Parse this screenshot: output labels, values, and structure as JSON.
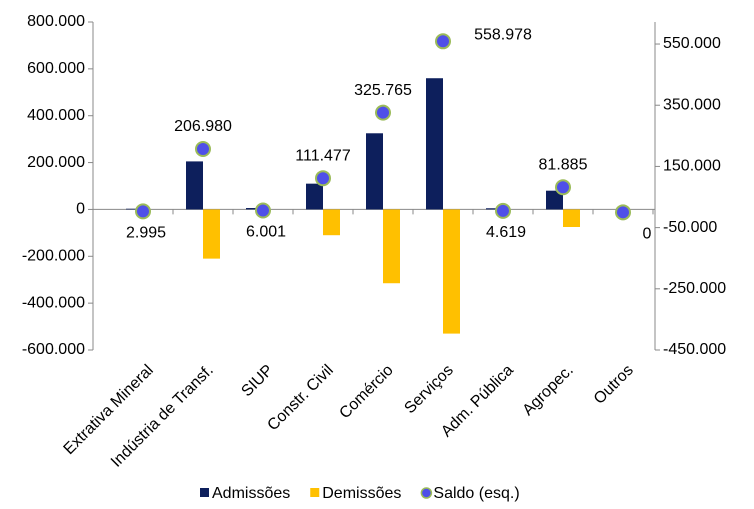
{
  "chart_data": {
    "type": "bar",
    "categories": [
      "Extrativa Mineral",
      "Indústria de Transf.",
      "SIUP",
      "Constr. Civil",
      "Comércio",
      "Serviços",
      "Adm. Pública",
      "Agropec.",
      "Outros"
    ],
    "series": [
      {
        "name": "Admissões",
        "color": "#0d1f5c",
        "type": "bar",
        "values": [
          3000,
          205000,
          6000,
          110000,
          325000,
          560000,
          5000,
          80000,
          0
        ]
      },
      {
        "name": "Demissões",
        "color": "#ffc000",
        "type": "bar",
        "values": [
          0,
          -210000,
          0,
          -110000,
          -315000,
          -530000,
          0,
          -75000,
          0
        ]
      },
      {
        "name": "Saldo (esq.)",
        "color": "#4f4fe8",
        "type": "scatter",
        "axis": "y2",
        "values": [
          2995,
          206980,
          6001,
          111477,
          325765,
          558978,
          4619,
          81885,
          0
        ],
        "value_labels": [
          "2.995",
          "206.980",
          "6.001",
          "111.477",
          "325.765",
          "558.978",
          "4.619",
          "81.885",
          "0"
        ]
      }
    ],
    "ylim": [
      -600000,
      800000
    ],
    "yticks": [
      {
        "value": -600000,
        "label": "-600.000"
      },
      {
        "value": -400000,
        "label": "-400.000"
      },
      {
        "value": -200000,
        "label": "-200.000"
      },
      0,
      {
        "value": 200000,
        "label": "200.000"
      },
      {
        "value": 400000,
        "label": "400.000"
      },
      {
        "value": 600000,
        "label": "600.000"
      },
      {
        "value": 800000,
        "label": "800.000"
      }
    ],
    "y2lim": [
      -450000,
      622000
    ],
    "y2ticks": [
      {
        "value": -450000,
        "label": "-450.000"
      },
      {
        "value": -250000,
        "label": "-250.000"
      },
      {
        "value": -50000,
        "label": "-50.000"
      },
      {
        "value": 150000,
        "label": "150.000"
      },
      {
        "value": 350000,
        "label": "350.000"
      },
      {
        "value": 550000,
        "label": "550.000"
      }
    ],
    "legend": "bottom"
  }
}
